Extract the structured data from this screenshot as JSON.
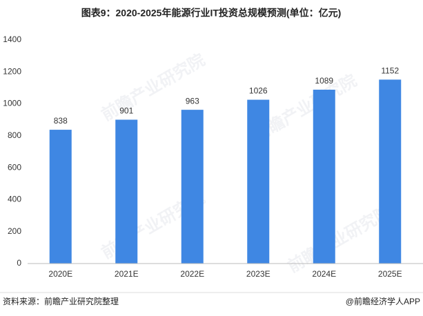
{
  "chart_data": {
    "type": "bar",
    "title": "图表9：2020-2025年能源行业IT投资总规模预测(单位：亿元)",
    "categories": [
      "2020E",
      "2021E",
      "2022E",
      "2023E",
      "2024E",
      "2025E"
    ],
    "values": [
      838,
      901,
      963,
      1026,
      1089,
      1152
    ],
    "color": "#3f87e3",
    "ylim": [
      0,
      1400
    ],
    "yticks": [
      0,
      200,
      400,
      600,
      800,
      1000,
      1200,
      1400
    ],
    "grid": false,
    "watermark": "前瞻产业研究院",
    "source": "资料来源：前瞻产业研究院整理",
    "credit": "@前瞻经济学人APP"
  }
}
